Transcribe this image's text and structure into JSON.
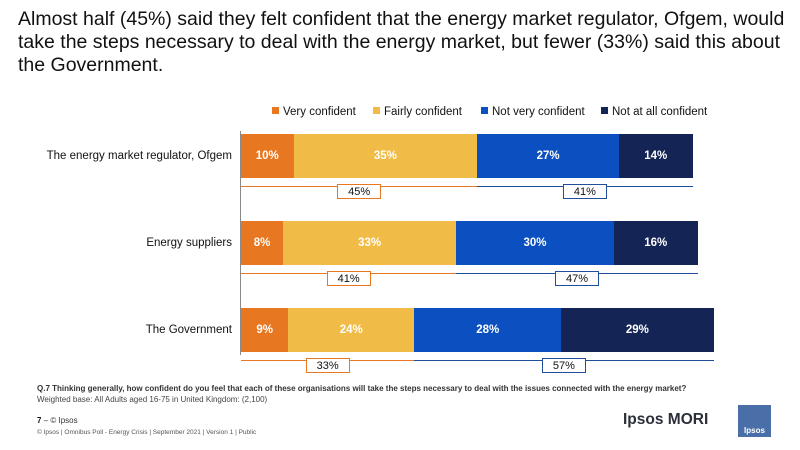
{
  "title": "Almost half (45%) said they felt confident that the energy market regulator, Ofgem, would take the steps necessary to deal with the energy market, but fewer (33%) said this about the Government.",
  "chart_data": {
    "type": "bar",
    "orientation": "horizontal",
    "stacked": true,
    "unit": "%",
    "categories": [
      "The energy market regulator, Ofgem",
      "Energy suppliers",
      "The Government"
    ],
    "series": [
      {
        "name": "Very confident",
        "color": "#e87722",
        "values": [
          10,
          8,
          9
        ],
        "labels": [
          "10%",
          "8%",
          "9%"
        ]
      },
      {
        "name": "Fairly confident",
        "color": "#f0bc47",
        "values": [
          35,
          33,
          24
        ],
        "labels": [
          "35%",
          "33%",
          "24%"
        ]
      },
      {
        "name": "Not very confident",
        "color": "#0c4fc0",
        "values": [
          27,
          30,
          28
        ],
        "labels": [
          "27%",
          "30%",
          "28%"
        ]
      },
      {
        "name": "Not at all confident",
        "color": "#142454",
        "values": [
          14,
          16,
          29
        ],
        "labels": [
          "14%",
          "16%",
          "29%"
        ]
      }
    ],
    "summaries": {
      "confident": {
        "labels": [
          "45%",
          "41%",
          "33%"
        ],
        "color": "#e87722"
      },
      "not_confident": {
        "labels": [
          "41%",
          "47%",
          "57%"
        ],
        "color": "#1f4e9c"
      }
    },
    "legend_position": "top"
  },
  "footer": {
    "question": "Q.7 Thinking generally, how confident do you feel that each of these organisations will take the steps necessary to deal with the issues connected with the energy market?",
    "base": "Weighted base: All Adults aged 16-75 in United Kingdom: (2,100)",
    "page_number": "7",
    "page_dash": "–",
    "copyright_short": "© Ipsos",
    "copyright_full": "© Ipsos | Omnibus Poll - Energy Crisis | September 2021 | Version 1 | Public",
    "brand": "Ipsos MORI",
    "logo_text": "Ipsos"
  }
}
